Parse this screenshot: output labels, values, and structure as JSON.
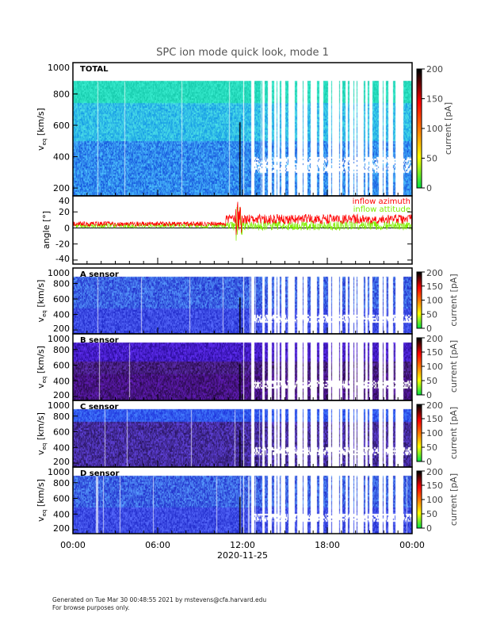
{
  "title": "SPC ion mode quick look, mode 1",
  "footer": {
    "line1": "Generated on Tue Mar 30 00:48:55 2021 by mstevens@cfa.harvard.edu",
    "line2": "For browse purposes only."
  },
  "chart_data": {
    "type": "heatmap",
    "x": {
      "ticks": [
        "00:00",
        "06:00",
        "12:00",
        "18:00",
        "00:00"
      ],
      "label": "2020-11-25",
      "range_hours": [
        0,
        24
      ]
    },
    "colormap": {
      "stops": [
        "#00e040",
        "#ffff00",
        "#ff8000",
        "#ff0000",
        "#000000"
      ]
    },
    "panels": [
      {
        "label": "TOTAL",
        "ylabel_main": "v",
        "ylabel_sub": "eq",
        "ylabel_unit": "[km/s]",
        "ylim": [
          150,
          1000
        ],
        "yticks": [
          200,
          400,
          600,
          800,
          1000
        ],
        "colorbar": {
          "label": "current [pA]",
          "range": [
            0,
            200
          ],
          "ticks": [
            0,
            50,
            100,
            150,
            200
          ]
        },
        "palette": "total"
      },
      {
        "type": "line",
        "ylabel": "angle [°]",
        "ylim": [
          -45,
          40
        ],
        "yticks": [
          -40,
          -20,
          0,
          20,
          40
        ],
        "series": [
          {
            "name": "inflow azimuth",
            "color": "#ff0000",
            "mean_before_noon": 5,
            "mean_after_noon": 11
          },
          {
            "name": "inflow attitude",
            "color": "#80ee00",
            "mean_before_noon": 3,
            "mean_after_noon": 3
          }
        ]
      },
      {
        "label": "A sensor",
        "ylabel_main": "v",
        "ylabel_sub": "eq",
        "ylabel_unit": "[km/s]",
        "ylim": [
          150,
          1000
        ],
        "yticks": [
          200,
          400,
          600,
          800,
          1000
        ],
        "colorbar": {
          "label": "current [pA]",
          "range": [
            0,
            200
          ],
          "ticks": [
            0,
            50,
            100,
            150,
            200
          ]
        },
        "palette": "blue"
      },
      {
        "label": "B sensor",
        "ylabel_main": "v",
        "ylabel_sub": "eq",
        "ylabel_unit": "[km/s]",
        "ylim": [
          150,
          1000
        ],
        "yticks": [
          200,
          400,
          600,
          800,
          1000
        ],
        "colorbar": {
          "label": "current [pA]",
          "range": [
            0,
            200
          ],
          "ticks": [
            0,
            50,
            100,
            150,
            200
          ]
        },
        "palette": "dark"
      },
      {
        "label": "C sensor",
        "ylabel_main": "v",
        "ylabel_sub": "eq",
        "ylabel_unit": "[km/s]",
        "ylim": [
          150,
          1000
        ],
        "yticks": [
          200,
          400,
          600,
          800,
          1000
        ],
        "colorbar": {
          "label": "current [pA]",
          "range": [
            0,
            200
          ],
          "ticks": [
            0,
            50,
            100,
            150,
            200
          ]
        },
        "palette": "mid"
      },
      {
        "label": "D sensor",
        "ylabel_main": "v",
        "ylabel_sub": "eq",
        "ylabel_unit": "[km/s]",
        "ylim": [
          150,
          1000
        ],
        "yticks": [
          200,
          400,
          600,
          800,
          1000
        ],
        "colorbar": {
          "label": "current [pA]",
          "range": [
            0,
            200
          ],
          "ticks": [
            0,
            50,
            100,
            150,
            200
          ]
        },
        "palette": "blue"
      }
    ]
  }
}
